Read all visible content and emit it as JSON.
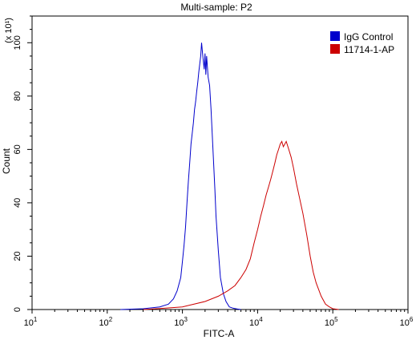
{
  "chart_data": {
    "type": "line",
    "title": "Multi-sample: P2",
    "xlabel": "FITC-A",
    "ylabel": "Count",
    "y_multiplier_label": "(x 10¹)",
    "x_scale": "log",
    "xlim": [
      10,
      1000000
    ],
    "ylim": [
      0,
      110
    ],
    "x_ticks": [
      {
        "base": "10",
        "exp": "1",
        "value": 10
      },
      {
        "base": "10",
        "exp": "2",
        "value": 100
      },
      {
        "base": "10",
        "exp": "3",
        "value": 1000
      },
      {
        "base": "10",
        "exp": "4",
        "value": 10000
      },
      {
        "base": "10",
        "exp": "5",
        "value": 100000
      },
      {
        "base": "10",
        "exp": "6",
        "value": 1000000
      }
    ],
    "y_ticks": [
      "0",
      "20",
      "40",
      "60",
      "80",
      "100"
    ],
    "y_tick_values": [
      0,
      20,
      40,
      60,
      80,
      100
    ],
    "legend_position": "top-right",
    "grid": false,
    "series": [
      {
        "name": "IgG Control",
        "color": "#0000cc",
        "x": [
          150,
          300,
          500,
          650,
          760,
          850,
          950,
          1000,
          1050,
          1100,
          1150,
          1200,
          1250,
          1300,
          1350,
          1400,
          1450,
          1500,
          1550,
          1600,
          1650,
          1700,
          1750,
          1800,
          1850,
          1900,
          1950,
          2000,
          2050,
          2100,
          2200,
          2300,
          2400,
          2500,
          2600,
          2700,
          2800,
          3000,
          3200,
          3500,
          3800,
          4200,
          4700,
          5300,
          6000
        ],
        "y": [
          0,
          0.3,
          1,
          2,
          4,
          7,
          12,
          18,
          24,
          31,
          40,
          48,
          55,
          62,
          66,
          70,
          75,
          78,
          82,
          85,
          89,
          92,
          95,
          100,
          96,
          93,
          90,
          96,
          88,
          95,
          87,
          84,
          75,
          65,
          55,
          45,
          35,
          22,
          12,
          6,
          3,
          1,
          0.5,
          0.2,
          0
        ]
      },
      {
        "name": "11714-1-AP",
        "color": "#cc0000",
        "x": [
          300,
          600,
          1000,
          2000,
          3000,
          4000,
          5000,
          6000,
          7000,
          8000,
          9000,
          10000,
          11000,
          12000,
          13000,
          14000,
          15000,
          16000,
          17000,
          18000,
          19000,
          20000,
          21000,
          22000,
          24000,
          26000,
          28000,
          30000,
          33000,
          36000,
          40000,
          45000,
          50000,
          55000,
          60000,
          70000,
          80000,
          90000,
          100000,
          120000
        ],
        "y": [
          0,
          0.5,
          1,
          3,
          5,
          7,
          9,
          12,
          15,
          19,
          25,
          30,
          35,
          39,
          43,
          46,
          49,
          52,
          55,
          58,
          60,
          62,
          63,
          61,
          63,
          60,
          57,
          53,
          47,
          42,
          36,
          28,
          20,
          14,
          10,
          5,
          2,
          1,
          0.3,
          0
        ]
      }
    ]
  }
}
